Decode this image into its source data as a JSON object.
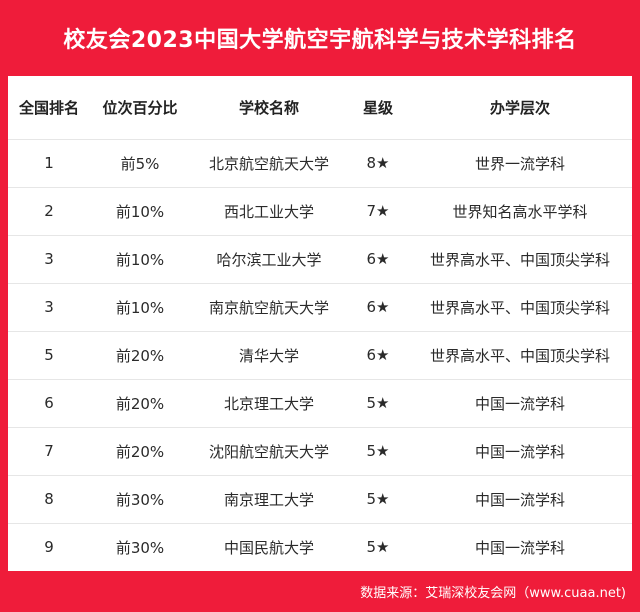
{
  "title": "校友会2023中国大学航空宇航科学与技术学科排名",
  "headers": [
    "全国排名",
    "位次百分比",
    "学校名称",
    "星级",
    "办学层次"
  ],
  "rows": [
    [
      "1",
      "前5%",
      "北京航空航天大学",
      "8★",
      "世界一流学科"
    ],
    [
      "2",
      "前10%",
      "西北工业大学",
      "7★",
      "世界知名高水平学科"
    ],
    [
      "3",
      "前10%",
      "哈尔滨工业大学",
      "6★",
      "世界高水平、中国顶尖学科"
    ],
    [
      "3",
      "前10%",
      "南京航空航天大学",
      "6★",
      "世界高水平、中国顶尖学科"
    ],
    [
      "5",
      "前20%",
      "清华大学",
      "6★",
      "世界高水平、中国顶尖学科"
    ],
    [
      "6",
      "前20%",
      "北京理工大学",
      "5★",
      "中国一流学科"
    ],
    [
      "7",
      "前20%",
      "沈阳航空航天大学",
      "5★",
      "中国一流学科"
    ],
    [
      "8",
      "前30%",
      "南京理工大学",
      "5★",
      "中国一流学科"
    ],
    [
      "9",
      "前30%",
      "中国民航大学",
      "5★",
      "中国一流学科"
    ]
  ],
  "footer": "数据来源：艾瑞深校友会网（www.cuaa.net)",
  "colors": {
    "background": "#ef1c3a",
    "panel": "#ffffff",
    "text": "#222222"
  }
}
